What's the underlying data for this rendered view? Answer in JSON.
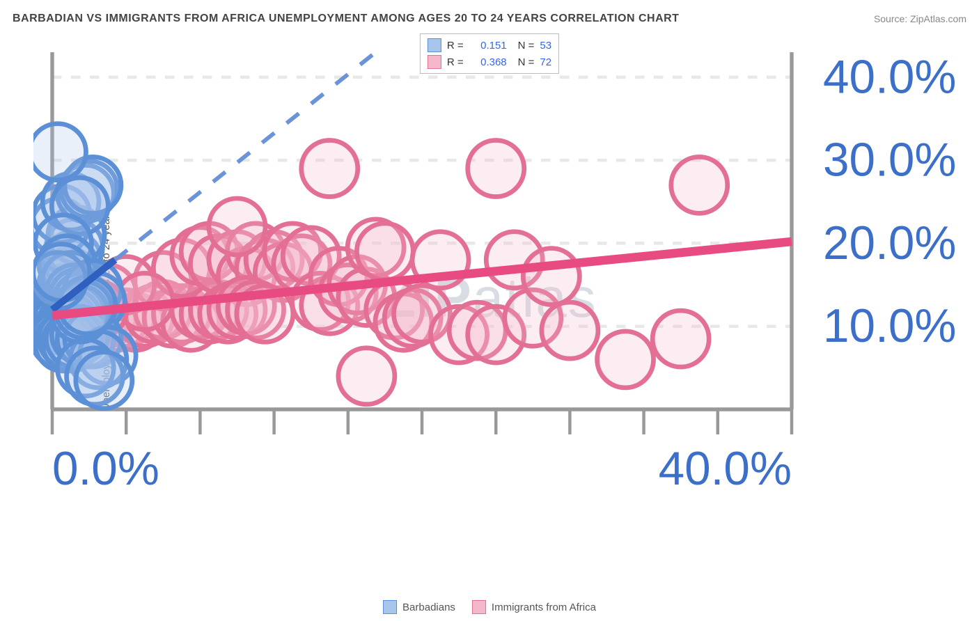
{
  "header": {
    "title": "BARBADIAN VS IMMIGRANTS FROM AFRICA UNEMPLOYMENT AMONG AGES 20 TO 24 YEARS CORRELATION CHART",
    "source": "Source: ZipAtlas.com"
  },
  "watermark": {
    "zip": "ZIP",
    "atlas": "atlas"
  },
  "chart": {
    "type": "scatter",
    "y_axis_label": "Unemployment Among Ages 20 to 24 years",
    "background_color": "#ffffff",
    "grid_color": "#e8e8e8",
    "axis_line_color": "#999999",
    "tick_color": "#999999",
    "tick_label_color": "#3b6fc9",
    "x_range": [
      0,
      40
    ],
    "y_range": [
      0,
      43
    ],
    "x_ticks": [
      0,
      4,
      8,
      12,
      16,
      20,
      24,
      28,
      32,
      36,
      40
    ],
    "x_tick_labels": {
      "0": "0.0%",
      "40": "40.0%"
    },
    "y_ticks": [
      10,
      20,
      30,
      40
    ],
    "y_tick_labels": {
      "10": "10.0%",
      "20": "20.0%",
      "30": "30.0%",
      "40": "40.0%"
    },
    "marker_radius": 9,
    "marker_stroke_width": 1.5,
    "marker_fill_opacity": 0.25,
    "series": [
      {
        "id": "barbadians",
        "label": "Barbadians",
        "color_fill": "#a8c5ec",
        "color_stroke": "#5b8fd6",
        "r_value": "0.151",
        "n_value": "53",
        "trend": {
          "x1": 0,
          "y1": 12,
          "x2": 3.4,
          "y2": 18,
          "color": "#2f5fbf",
          "width": 2.2,
          "dash": "none"
        },
        "trend_ext": {
          "x1": 3.4,
          "y1": 18,
          "x2": 17.5,
          "y2": 43,
          "color": "#6b93d8",
          "width": 1.3,
          "dash": "5,5"
        },
        "points": [
          [
            0.2,
            11
          ],
          [
            0.3,
            12
          ],
          [
            0.4,
            13
          ],
          [
            0.5,
            11.5
          ],
          [
            0.6,
            12.5
          ],
          [
            0.7,
            14
          ],
          [
            0.8,
            15
          ],
          [
            0.9,
            16
          ],
          [
            1.0,
            17
          ],
          [
            1.1,
            18
          ],
          [
            1.2,
            19.5
          ],
          [
            1.3,
            21
          ],
          [
            0.4,
            22
          ],
          [
            0.5,
            23.5
          ],
          [
            1.0,
            25
          ],
          [
            1.8,
            26
          ],
          [
            2.0,
            26.5
          ],
          [
            2.2,
            27
          ],
          [
            0.3,
            31
          ],
          [
            1.5,
            24.5
          ],
          [
            0.6,
            20
          ],
          [
            0.8,
            17.5
          ],
          [
            1.0,
            15.5
          ],
          [
            1.2,
            14
          ],
          [
            1.4,
            13.5
          ],
          [
            1.6,
            13
          ],
          [
            1.8,
            12.5
          ],
          [
            2.0,
            12
          ],
          [
            2.2,
            14.5
          ],
          [
            2.4,
            13
          ],
          [
            0.5,
            10.5
          ],
          [
            0.7,
            10
          ],
          [
            0.9,
            10.5
          ],
          [
            1.1,
            11
          ],
          [
            1.3,
            11.5
          ],
          [
            0.4,
            8.5
          ],
          [
            0.6,
            8
          ],
          [
            0.8,
            8.5
          ],
          [
            1.0,
            8
          ],
          [
            1.2,
            8.5
          ],
          [
            1.5,
            9
          ],
          [
            1.8,
            8.5
          ],
          [
            2.2,
            8.5
          ],
          [
            3.0,
            6.5
          ],
          [
            2.5,
            6
          ],
          [
            1.8,
            5
          ],
          [
            2.3,
            4
          ],
          [
            2.8,
            3.5
          ],
          [
            1.5,
            11.5
          ],
          [
            1.7,
            12
          ],
          [
            1.9,
            12.5
          ],
          [
            0.3,
            15.5
          ],
          [
            0.5,
            16.5
          ]
        ]
      },
      {
        "id": "immigrants_africa",
        "label": "Immigrants from Africa",
        "color_fill": "#f5b8ca",
        "color_stroke": "#e36f95",
        "r_value": "0.368",
        "n_value": "72",
        "trend": {
          "x1": 0,
          "y1": 11.3,
          "x2": 40,
          "y2": 20.2,
          "color": "#e84a82",
          "width": 2.8,
          "dash": "none"
        },
        "points": [
          [
            0.5,
            11
          ],
          [
            1,
            11.2
          ],
          [
            1.5,
            11.3
          ],
          [
            2,
            11.5
          ],
          [
            2.5,
            10.5
          ],
          [
            3,
            11
          ],
          [
            3.5,
            10.5
          ],
          [
            4,
            11
          ],
          [
            4.5,
            10.5
          ],
          [
            5,
            11
          ],
          [
            5.5,
            11.5
          ],
          [
            6,
            12
          ],
          [
            6.5,
            11
          ],
          [
            7,
            11.5
          ],
          [
            7.5,
            10.5
          ],
          [
            8,
            12
          ],
          [
            8.5,
            11.5
          ],
          [
            9,
            12
          ],
          [
            6,
            15.5
          ],
          [
            7,
            17
          ],
          [
            8,
            18.5
          ],
          [
            8.5,
            19
          ],
          [
            9,
            17.5
          ],
          [
            10,
            18
          ],
          [
            10.5,
            16
          ],
          [
            11,
            19
          ],
          [
            11.5,
            17
          ],
          [
            12,
            18
          ],
          [
            12.5,
            16.5
          ],
          [
            13,
            19
          ],
          [
            13.5,
            17.5
          ],
          [
            14,
            18.5
          ],
          [
            14.5,
            13
          ],
          [
            15,
            12.5
          ],
          [
            15.5,
            16
          ],
          [
            16,
            14
          ],
          [
            16.5,
            15
          ],
          [
            17,
            13.5
          ],
          [
            17.5,
            19.5
          ],
          [
            18,
            19
          ],
          [
            18.5,
            12
          ],
          [
            19,
            10.5
          ],
          [
            19.5,
            11
          ],
          [
            20,
            11.5
          ],
          [
            21,
            18
          ],
          [
            22,
            9
          ],
          [
            23,
            9.5
          ],
          [
            24,
            9
          ],
          [
            25,
            18
          ],
          [
            26,
            11
          ],
          [
            27,
            16
          ],
          [
            28,
            9.5
          ],
          [
            15,
            29
          ],
          [
            24,
            29
          ],
          [
            10,
            22
          ],
          [
            35,
            27
          ],
          [
            34,
            8.5
          ],
          [
            31,
            6
          ],
          [
            17,
            4
          ],
          [
            3,
            14
          ],
          [
            4,
            15
          ],
          [
            5,
            13
          ],
          [
            2,
            12.5
          ],
          [
            2.5,
            12
          ],
          [
            1.5,
            10.5
          ],
          [
            1,
            10
          ],
          [
            0.8,
            10.5
          ],
          [
            9.5,
            11.5
          ],
          [
            10,
            12
          ],
          [
            10.5,
            12.5
          ],
          [
            11,
            12
          ],
          [
            11.5,
            11.5
          ]
        ]
      }
    ]
  },
  "legend_top": {
    "r_label": "R =",
    "n_label": "N ="
  }
}
